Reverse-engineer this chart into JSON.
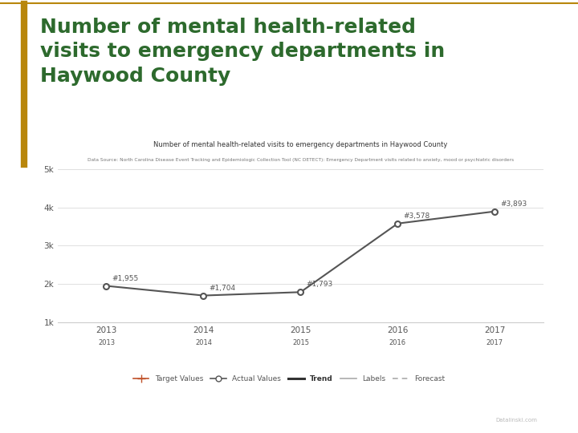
{
  "title_main": "Number of mental health-related\nvisits to emergency departments in\nHaywood County",
  "chart_title": "Number of mental health-related visits to emergency departments in Haywood County",
  "subtitle": "Data Source: North Carolina Disease Event Tracking and Epidemiologic Collection Tool (NC DETECT): Emergency Department visits related to anxiety, mood or psychiatric disorders",
  "years": [
    2013,
    2014,
    2015,
    2016,
    2017
  ],
  "actual_values": [
    1955,
    1704,
    1793,
    3578,
    3893
  ],
  "x_tick_labels": [
    "2013",
    "2014",
    "2015",
    "2016",
    "2017"
  ],
  "point_labels": [
    "#1,955",
    "#1,704",
    "#1,793",
    "#3,578",
    "#3,893"
  ],
  "ylim": [
    1000,
    5000
  ],
  "yticks": [
    1000,
    2000,
    3000,
    4000,
    5000
  ],
  "ytick_labels": [
    "1k",
    "2k",
    "3k",
    "4k",
    "5k"
  ],
  "main_title_color": "#2d6a2d",
  "chart_title_color": "#333333",
  "subtitle_color": "#777777",
  "line_color": "#555555",
  "marker_color": "#555555",
  "target_color": "#c0522a",
  "label_color": "#555555",
  "background_color": "#ffffff",
  "gold_color": "#b8860b",
  "scrollbar_color": "#c8d4e0",
  "watermark": "Datalinski.com"
}
